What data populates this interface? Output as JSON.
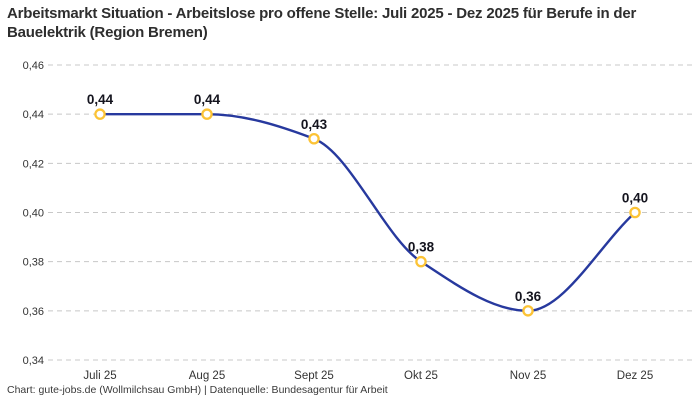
{
  "header": {
    "title": "Arbeitsmarkt Situation - Arbeitslose pro offene Stelle: Juli 2025 - Dez 2025 für Berufe in der Bauelektrik (Region Bremen)"
  },
  "footer": {
    "credit": "Chart: gute-jobs.de (Wollmilchsau GmbH) | Datenquelle: Bundesagentur für Arbeit"
  },
  "colors": {
    "background": "#ffffff",
    "line": "#27399e",
    "marker": "#fcc335",
    "marker_fill": "#ffffff",
    "grid": "#c8c8c8",
    "axis_text": "#333333",
    "value_label": "#14141e",
    "title_text": "#2e2e2e",
    "footer_text": "#3a3a3a"
  },
  "chart_data": {
    "type": "line",
    "title": "Arbeitsmarkt Situation - Arbeitslose pro offene Stelle: Juli 2025 - Dez 2025 für Berufe in der Bauelektrik (Region Bremen)",
    "categories": [
      "Juli 25",
      "Aug 25",
      "Sept 25",
      "Okt 25",
      "Nov 25",
      "Dez 25"
    ],
    "values": [
      0.44,
      0.44,
      0.43,
      0.38,
      0.36,
      0.4
    ],
    "value_labels": [
      "0,44",
      "0,44",
      "0,43",
      "0,38",
      "0,36",
      "0,40"
    ],
    "y_ticks": [
      {
        "value": 0.46,
        "label": "0,46"
      },
      {
        "value": 0.44,
        "label": "0,44"
      },
      {
        "value": 0.42,
        "label": "0,42"
      },
      {
        "value": 0.4,
        "label": "0,40"
      },
      {
        "value": 0.38,
        "label": "0,38"
      },
      {
        "value": 0.36,
        "label": "0,36"
      },
      {
        "value": 0.34,
        "label": "0,34"
      }
    ],
    "xlabel": "",
    "ylabel": "",
    "ylim": [
      0.34,
      0.46
    ],
    "grid": "horizontal-dashed",
    "legend": "none",
    "marker_style": "open-circle",
    "interpolation": "smooth-spline"
  }
}
